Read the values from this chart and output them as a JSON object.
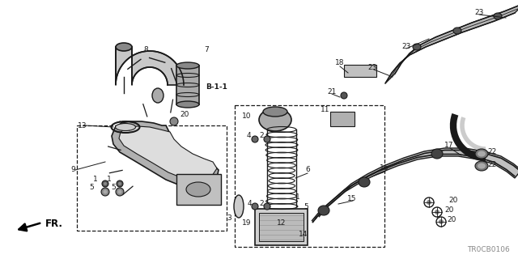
{
  "diagram_code": "TR0CB0106",
  "background_color": "#ffffff",
  "line_color": "#1a1a1a",
  "figsize": [
    6.4,
    3.2
  ],
  "dpi": 100
}
